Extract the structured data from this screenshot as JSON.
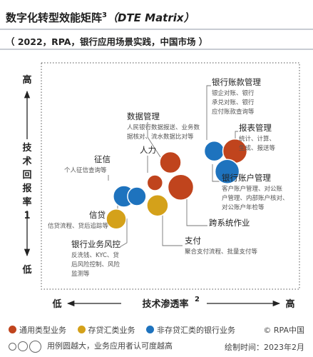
{
  "title": "数字化转型效能矩阵",
  "title_sup": "3",
  "title_en": "（DTE Matrix）",
  "subtitle": "（ 2022，RPA，银行应用场景实践，中国市场 ）",
  "legend": {
    "items": [
      {
        "label": "通用类型业务",
        "color": "#c0441d"
      },
      {
        "label": "存贷汇类业务",
        "color": "#d4a11a"
      },
      {
        "label": "非存贷汇类的银行业务",
        "color": "#1e73be"
      }
    ],
    "copyright": "© RPA中国",
    "size_note": "用例圆越大，业务应用者认可度越高",
    "date": "绘制时间：2023年2月"
  },
  "colors": {
    "general": "#c0441d",
    "deposit": "#d4a11a",
    "non_deposit": "#1e73be",
    "axis": "#222222"
  },
  "chart_data": {
    "type": "scatter",
    "title": "数字化转型效能矩阵",
    "xlabel": "技术渗透率",
    "xlabel_sup": "2",
    "ylabel": "技术回报率",
    "ylabel_sup": "1",
    "x_low": "低",
    "x_high": "高",
    "y_high": "高",
    "y_low": "低",
    "xlim": [
      0,
      100
    ],
    "ylim": [
      0,
      100
    ],
    "grid": false,
    "points": [
      {
        "id": "shuju",
        "x": 50,
        "y": 56,
        "size": 15,
        "category": "general",
        "name": "数据管理",
        "desc": "人民银行数据报送、业务数据核对、流水数据比对等"
      },
      {
        "id": "renli",
        "x": 44,
        "y": 47,
        "size": 11,
        "category": "general",
        "name": "人力",
        "desc": ""
      },
      {
        "id": "zhengxin",
        "x": 32,
        "y": 41,
        "size": 15,
        "category": "non_deposit",
        "name": "征信",
        "desc": "个人征信查询等"
      },
      {
        "id": "daizhan",
        "x": 29,
        "y": 31,
        "size": 14,
        "category": "deposit",
        "name": "信贷",
        "desc": "信贷流程、贷后追踪等"
      },
      {
        "id": "fengkong",
        "x": 37,
        "y": 41,
        "size": 13,
        "category": "non_deposit",
        "name": "银行业务风控",
        "desc": "反洗钱、KYC、贷后风险控制、风险监测等"
      },
      {
        "id": "zhifu",
        "x": 45,
        "y": 37,
        "size": 15,
        "category": "deposit",
        "name": "支付",
        "desc": "聚合支付流程、批量支付等"
      },
      {
        "id": "kuaxitong",
        "x": 54,
        "y": 45,
        "size": 18,
        "category": "general",
        "name": "跨系统作业",
        "desc": ""
      },
      {
        "id": "zhangkuan",
        "x": 67,
        "y": 61,
        "size": 14,
        "category": "non_deposit",
        "name": "银行账款管理",
        "desc": "银企对账、银行承兑对账、银行应付账款查询等"
      },
      {
        "id": "baobiao",
        "x": 75,
        "y": 61,
        "size": 17,
        "category": "general",
        "name": "报表管理",
        "desc": "统计、计算、生成、报送等"
      },
      {
        "id": "zhanghu",
        "x": 72,
        "y": 52,
        "size": 17,
        "category": "non_deposit",
        "name": "银行账户管理",
        "desc": "客户账户管理、对公账户管理、内部账户核对、对公账户年检等"
      }
    ]
  }
}
